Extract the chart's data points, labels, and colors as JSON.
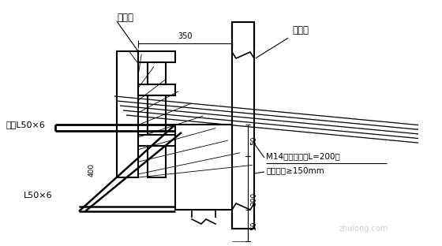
{
  "bg_color": "#ffffff",
  "labels": {
    "gang_yao_liang": "钢腰梁",
    "hu_po_zhuang": "护坡桩",
    "tong_chang": "通长L50×6",
    "l50x6": "L50×6",
    "m14": "M14膨胀螺栓（L=200）",
    "shen_ru": "伸入桩身≥150mm",
    "dim_350": "350",
    "dim_50_top": "50",
    "dim_300": "300",
    "dim_50_bot": "50",
    "dim_400": "400"
  },
  "watermark": "zhulong.com"
}
